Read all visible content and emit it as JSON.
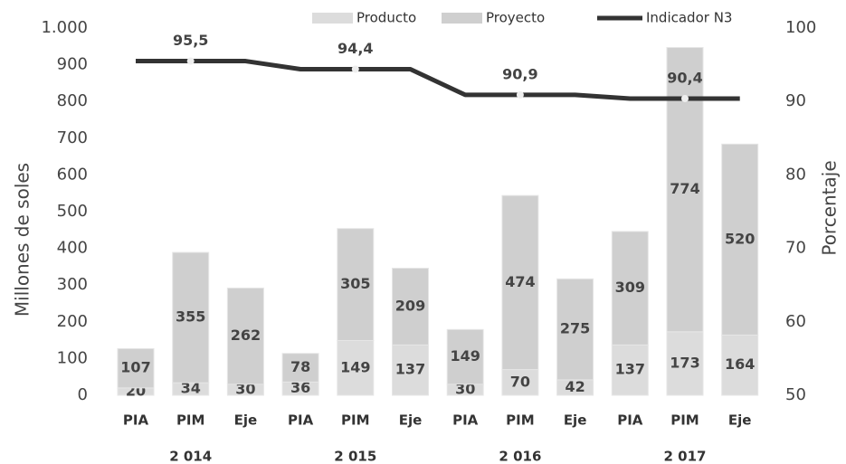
{
  "chart_data": {
    "type": "bar-line",
    "categories": [
      "PIA",
      "PIM",
      "Eje",
      "PIA",
      "PIM",
      "Eje",
      "PIA",
      "PIM",
      "Eje",
      "PIA",
      "PIM",
      "Eje"
    ],
    "groups": [
      "2 014",
      "2 015",
      "2 016",
      "2 017"
    ],
    "series": [
      {
        "name": "Producto",
        "color": "#dcdcdc",
        "values": [
          20,
          34,
          30,
          36,
          149,
          137,
          30,
          70,
          42,
          137,
          173,
          164
        ]
      },
      {
        "name": "Proyecto",
        "color": "#cfcfcf",
        "values": [
          107,
          355,
          262,
          78,
          305,
          209,
          149,
          474,
          275,
          309,
          774,
          520
        ]
      },
      {
        "name": "Indicador N3",
        "color": "#333333",
        "axis": "y2",
        "type": "line",
        "values": [
          95.5,
          95.5,
          95.5,
          94.4,
          94.4,
          94.4,
          90.9,
          90.9,
          90.9,
          90.4,
          90.4,
          90.4
        ],
        "value_labels": [
          null,
          "95,5",
          null,
          null,
          "94,4",
          null,
          null,
          "90,9",
          null,
          null,
          "90,4",
          null
        ]
      }
    ],
    "y_label": "Millones de soles",
    "y2_label": "Porcentaje",
    "ylim": [
      0,
      1000
    ],
    "yticks": [
      0,
      100,
      200,
      300,
      400,
      500,
      600,
      700,
      800,
      900,
      {
        "value": 1000,
        "label": "1.000"
      }
    ],
    "y2lim": [
      50,
      100
    ],
    "y2ticks": [
      50,
      60,
      70,
      80,
      90,
      100
    ]
  }
}
